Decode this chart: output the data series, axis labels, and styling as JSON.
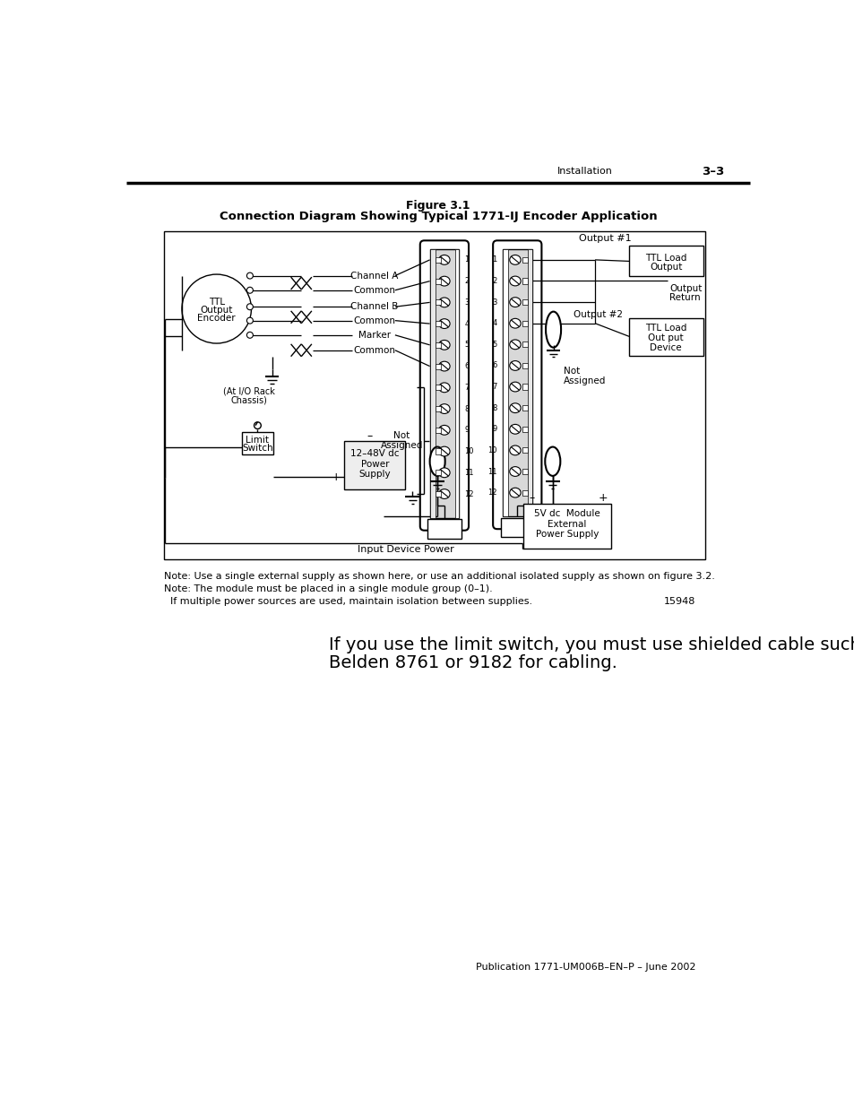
{
  "page_title_right": "Installation",
  "page_number": "3–3",
  "figure_title_line1": "Figure 3.1",
  "figure_title_line2": "Connection Diagram Showing Typical 1771-IJ Encoder Application",
  "note1": "Note: Use a single external supply as shown here, or use an additional isolated supply as shown on figure 3.2.",
  "note2": "Note: The module must be placed in a single module group (0–1).",
  "note3": "  If multiple power sources are used, maintain isolation between supplies.",
  "figure_number": "15948",
  "body_text_line1": "If you use the limit switch, you must use shielded cable such as",
  "body_text_line2": "Belden 8761 or 9182 for cabling.",
  "footer_text": "Publication 1771-UM006B–EN–P – June 2002",
  "bg_color": "#ffffff"
}
